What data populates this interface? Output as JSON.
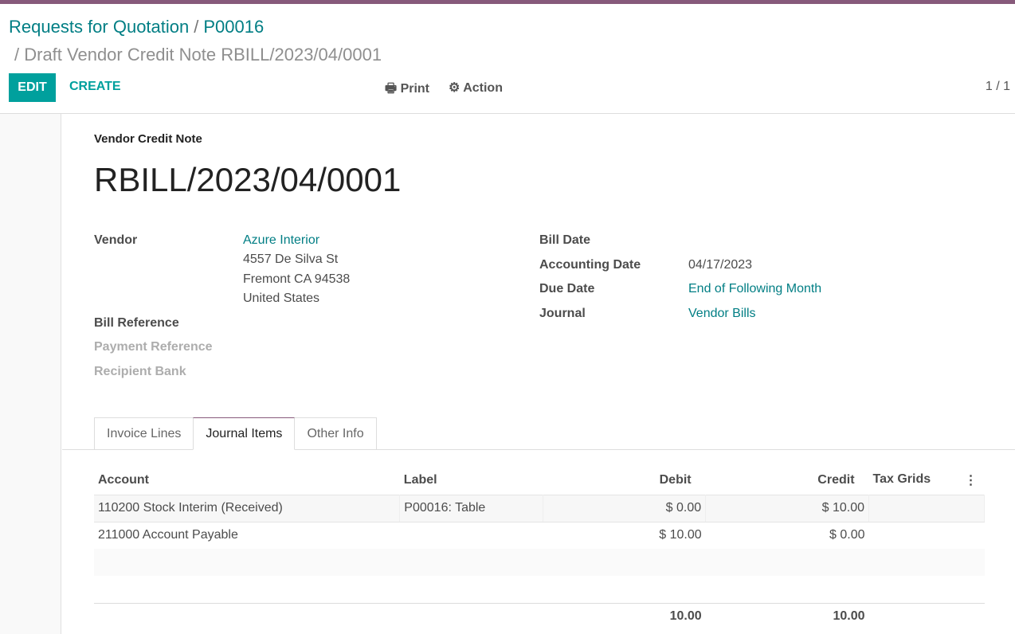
{
  "breadcrumb": {
    "items": [
      "Requests for Quotation",
      "P00016"
    ],
    "current": "/ Draft Vendor Credit Note RBILL/2023/04/0001",
    "separator": "/"
  },
  "toolbar": {
    "edit": "EDIT",
    "create": "CREATE",
    "print": "Print",
    "action": "Action",
    "pager": "1 / 1"
  },
  "document": {
    "type": "Vendor Credit Note",
    "number": "RBILL/2023/04/0001"
  },
  "fields": {
    "vendor_label": "Vendor",
    "vendor_name": "Azure Interior",
    "address": [
      "4557 De Silva St",
      "Fremont CA 94538",
      "United States"
    ],
    "bill_reference_label": "Bill Reference",
    "payment_reference_label": "Payment Reference",
    "recipient_bank_label": "Recipient Bank",
    "bill_date_label": "Bill Date",
    "accounting_date_label": "Accounting Date",
    "accounting_date": "04/17/2023",
    "due_date_label": "Due Date",
    "due_date": "End of Following Month",
    "journal_label": "Journal",
    "journal": "Vendor Bills"
  },
  "tabs": [
    "Invoice Lines",
    "Journal Items",
    "Other Info"
  ],
  "table": {
    "headers": [
      "Account",
      "Label",
      "Debit",
      "Credit",
      "Tax Grids"
    ],
    "rows": [
      [
        "110200 Stock Interim (Received)",
        "P00016: Table",
        "$ 0.00",
        "$ 10.00",
        ""
      ],
      [
        "211000 Account Payable",
        "",
        "$ 10.00",
        "$ 0.00",
        ""
      ]
    ],
    "totals": {
      "debit": "10.00",
      "credit": "10.00"
    }
  }
}
